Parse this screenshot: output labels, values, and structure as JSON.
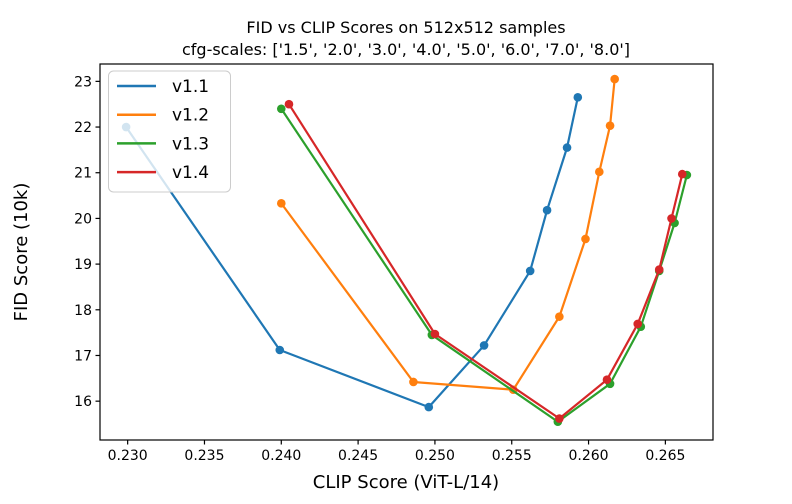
{
  "figure": {
    "background": "#ffffff",
    "frame_color": "#000000"
  },
  "chart_data": {
    "type": "line",
    "title": "FID vs CLIP Scores on 512x512 samples",
    "subtitle": "cfg-scales: ['1.5', '2.0', '3.0', '4.0', '5.0', '6.0', '7.0', '8.0']",
    "xlabel": "CLIP Score (ViT-L/14)",
    "ylabel": "FID Score (10k)",
    "xlim": [
      0.2282,
      0.2681
    ],
    "ylim": [
      15.15,
      23.38
    ],
    "xticks": [
      0.23,
      0.235,
      0.24,
      0.245,
      0.25,
      0.255,
      0.26,
      0.265
    ],
    "xtick_labels": [
      "0.230",
      "0.235",
      "0.240",
      "0.245",
      "0.250",
      "0.255",
      "0.260",
      "0.265"
    ],
    "yticks": [
      16,
      17,
      18,
      19,
      20,
      21,
      22,
      23
    ],
    "ytick_labels": [
      "16",
      "17",
      "18",
      "19",
      "20",
      "21",
      "22",
      "23"
    ],
    "grid": false,
    "legend_position": "upper left",
    "legend_frame": {
      "fill": "#ffffff",
      "opacity": 0.8,
      "border": "#cccccc"
    },
    "cfg_scales": [
      "1.5",
      "2.0",
      "3.0",
      "4.0",
      "5.0",
      "6.0",
      "7.0",
      "8.0"
    ],
    "series": [
      {
        "name": "v1.1",
        "color": "#1f77b4",
        "x": [
          0.2299,
          0.2399,
          0.2496,
          0.2532,
          0.2562,
          0.2573,
          0.2586,
          0.2593
        ],
        "y": [
          22.0,
          17.12,
          15.87,
          17.22,
          18.85,
          20.18,
          21.55,
          22.65
        ]
      },
      {
        "name": "v1.2",
        "color": "#ff7f0e",
        "x": [
          0.24,
          0.2486,
          0.2551,
          0.2581,
          0.2598,
          0.2607,
          0.2614,
          0.2617
        ],
        "y": [
          20.33,
          16.42,
          16.25,
          17.85,
          19.55,
          21.02,
          22.03,
          23.05
        ]
      },
      {
        "name": "v1.3",
        "color": "#2ca02c",
        "x": [
          0.24,
          0.2498,
          0.258,
          0.2614,
          0.2634,
          0.2646,
          0.2656,
          0.2664
        ],
        "y": [
          22.4,
          17.45,
          15.55,
          16.38,
          17.63,
          18.85,
          19.9,
          20.95
        ]
      },
      {
        "name": "v1.4",
        "color": "#d62728",
        "x": [
          0.2405,
          0.25,
          0.2581,
          0.2612,
          0.2632,
          0.2646,
          0.2654,
          0.2661
        ],
        "y": [
          22.5,
          17.47,
          15.62,
          16.47,
          17.69,
          18.88,
          20.0,
          20.97
        ]
      }
    ]
  }
}
